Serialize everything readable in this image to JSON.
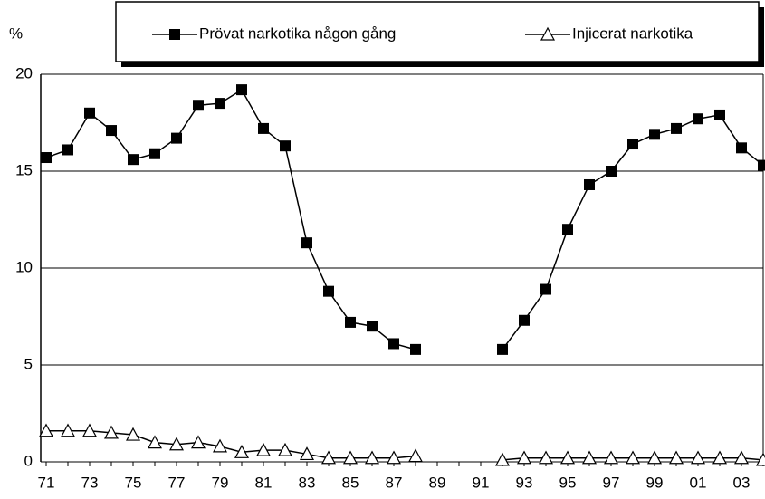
{
  "chart_data": {
    "type": "line",
    "y_label": "%",
    "categories": [
      "71",
      null,
      "73",
      null,
      "75",
      null,
      "77",
      null,
      "79",
      null,
      "81",
      null,
      "83",
      null,
      "85",
      null,
      "87",
      null,
      "89",
      null,
      "91",
      null,
      "93",
      null,
      "95",
      null,
      "97",
      null,
      "99",
      null,
      "01",
      null,
      "03",
      null
    ],
    "series": [
      {
        "name": "Prövat narkotika någon gång",
        "color": "#000000",
        "marker": "square",
        "values": [
          15.7,
          16.1,
          18.0,
          17.1,
          15.6,
          15.9,
          16.7,
          18.4,
          18.5,
          19.2,
          17.2,
          16.3,
          11.3,
          8.8,
          7.2,
          7.0,
          6.1,
          5.8,
          null,
          null,
          null,
          5.8,
          7.3,
          8.9,
          12.0,
          14.3,
          15.0,
          16.4,
          16.9,
          17.2,
          17.7,
          17.9,
          16.2,
          15.3
        ]
      },
      {
        "name": "Injicerat narkotika",
        "color": "#000000",
        "marker": "triangle",
        "values": [
          1.6,
          1.6,
          1.6,
          1.5,
          1.4,
          1.0,
          0.9,
          1.0,
          0.8,
          0.5,
          0.6,
          0.6,
          0.4,
          0.2,
          0.2,
          0.2,
          0.2,
          0.3,
          null,
          null,
          null,
          0.1,
          0.2,
          0.2,
          0.2,
          0.2,
          0.2,
          0.2,
          0.2,
          0.2,
          0.2,
          0.2,
          0.2,
          0.1
        ]
      }
    ],
    "ylim": [
      0,
      20
    ],
    "yticks": [
      0,
      5,
      10,
      15,
      20
    ],
    "grid": true
  }
}
